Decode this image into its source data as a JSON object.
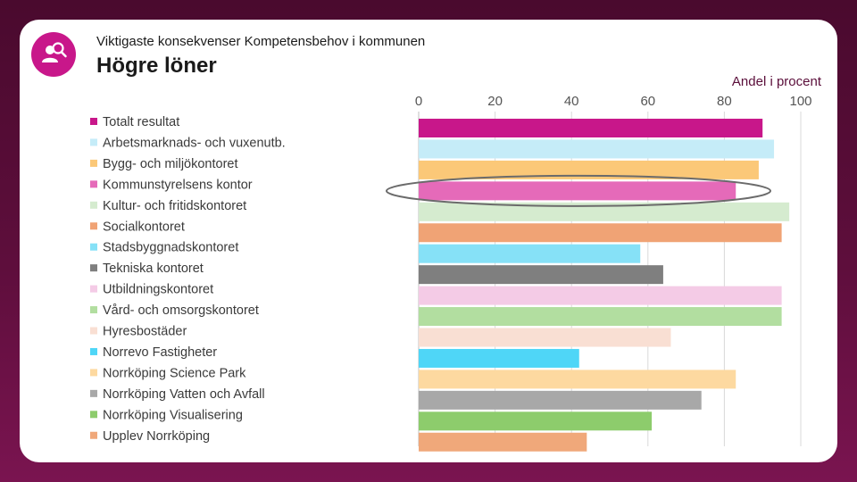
{
  "header": {
    "subtitle": "Viktigaste konsekvenser Kompetensbehov i kommunen",
    "title": "Högre löner",
    "unit_label": "Andel i procent"
  },
  "icons": {
    "badge": "person-search-icon",
    "badge_color": "#c8178a"
  },
  "highlight": {
    "shape": "ellipse",
    "target_category": "Kommunstyrelsens kontor"
  },
  "chart_data": {
    "type": "bar",
    "orientation": "horizontal",
    "xlim": [
      0,
      100
    ],
    "xticks": [
      "0",
      "20",
      "40",
      "60",
      "80",
      "100"
    ],
    "grid": true,
    "legend_position": "left",
    "categories": [
      "Totalt resultat",
      "Arbetsmarknads- och vuxenutb.",
      "Bygg- och miljökontoret",
      "Kommunstyrelsens kontor",
      "Kultur- och fritidskontoret",
      "Socialkontoret",
      "Stadsbyggnadskontoret",
      "Tekniska kontoret",
      "Utbildningskontoret",
      "Vård- och omsorgskontoret",
      "Hyresbostäder",
      "Norrevo Fastigheter",
      "Norrköping Science Park",
      "Norrköping Vatten och Avfall",
      "Norrköping Visualisering",
      "Upplev Norrköping"
    ],
    "values": [
      90,
      93,
      89,
      83,
      97,
      95,
      58,
      64,
      95,
      95,
      66,
      42,
      83,
      74,
      61,
      44
    ],
    "colors": [
      "#c8178a",
      "#c5ecf8",
      "#fbc878",
      "#e56ab9",
      "#d5ebcf",
      "#f0a375",
      "#86e1f7",
      "#7f7f7f",
      "#f4cbe6",
      "#b2dea0",
      "#f9dfd3",
      "#4fd6f7",
      "#fdd9a0",
      "#a8a8a8",
      "#8dcc6c",
      "#f0a87a"
    ]
  }
}
